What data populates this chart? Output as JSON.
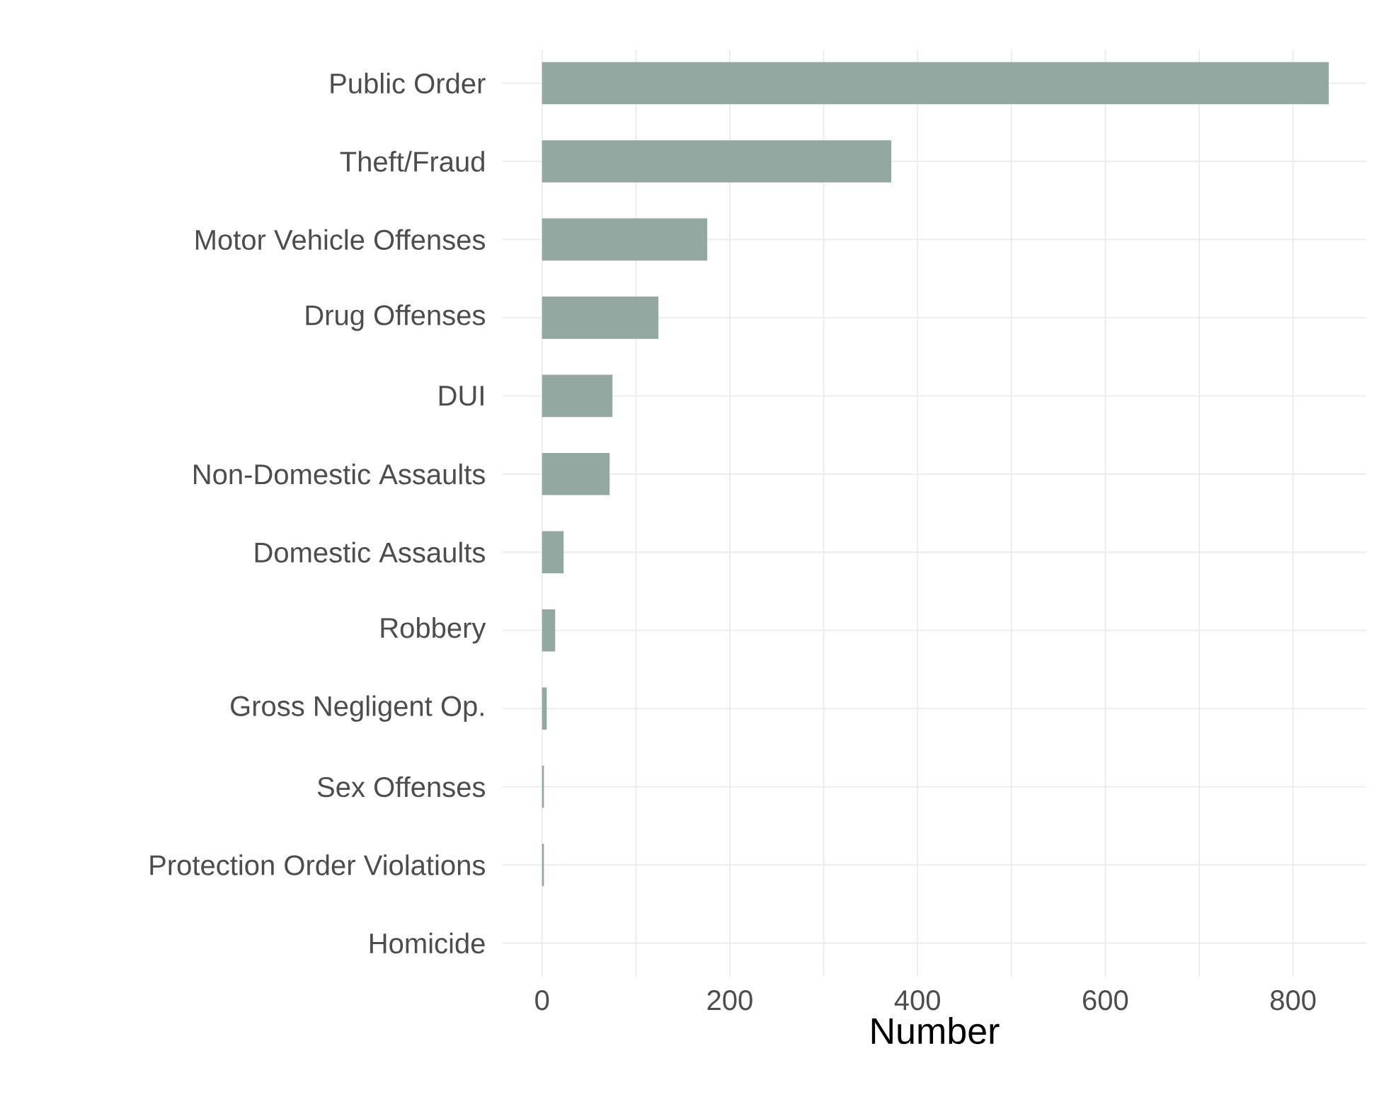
{
  "chart_data": {
    "type": "bar",
    "orientation": "horizontal",
    "xlabel": "Number",
    "categories": [
      "Public Order",
      "Theft/Fraud",
      "Motor Vehicle Offenses",
      "Drug Offenses",
      "DUI",
      "Non-Domestic Assaults",
      "Domestic Assaults",
      "Robbery",
      "Gross Negligent Op.",
      "Sex Offenses",
      "Protection Order Violations",
      "Homicide"
    ],
    "values": [
      838,
      372,
      176,
      124,
      75,
      72,
      23,
      14,
      5,
      2,
      2,
      0
    ],
    "color": "#92a8a0",
    "xlim": [
      -42,
      878
    ],
    "xticks": [
      0,
      {
        "value": 100,
        "label": null
      },
      200,
      {
        "value": 300,
        "label": null
      },
      400,
      {
        "value": 500,
        "label": null
      },
      600,
      {
        "value": 700,
        "label": null
      },
      800
    ],
    "grid": true
  }
}
